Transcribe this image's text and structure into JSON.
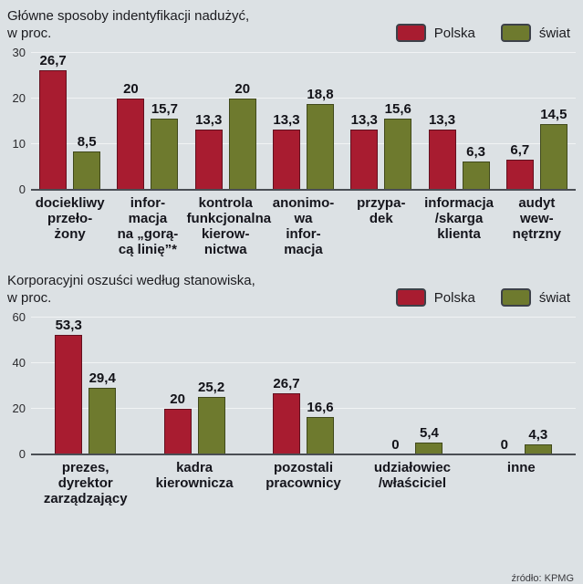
{
  "legend": {
    "polska": "Polska",
    "swiat": "świat"
  },
  "colors": {
    "polska": "#a81c30",
    "swiat": "#6e7a2e",
    "background": "#dce1e4",
    "axis": "#4a4e54",
    "gridline": "#f1f3f4"
  },
  "source": "źródło: KPMG",
  "chart_data": [
    {
      "type": "bar",
      "title": "Główne sposoby indentyfikacji nadużyć,\nw proc.",
      "categories": [
        "dociekliwy\nprzeło-\nżony",
        "infor-\nmacja\nna „gorą-\ncą linię”*",
        "kontrola\nfunkcjonalna\nkierow-\nnictwa",
        "anonimo-\nwa\ninfor-\nmacja",
        "przypa-\ndek",
        "informacja\n/skarga\nklienta",
        "audyt\nwew-\nnętrzny"
      ],
      "series": [
        {
          "name": "Polska",
          "values": [
            26.7,
            20,
            13.3,
            13.3,
            13.3,
            13.3,
            6.7
          ]
        },
        {
          "name": "świat",
          "values": [
            8.5,
            15.7,
            20,
            18.8,
            15.6,
            6.3,
            14.5
          ]
        }
      ],
      "ylim": [
        0,
        30
      ],
      "yticks": [
        0,
        10,
        20,
        30
      ],
      "legend_position": "top-right",
      "grid": true
    },
    {
      "type": "bar",
      "title": "Korporacyjni oszuści według stanowiska,\nw proc.",
      "categories": [
        "prezes,\ndyrektor\nzarządzający",
        "kadra\nkierownicza",
        "pozostali\npracownicy",
        "udziałowiec\n/właściciel",
        "inne"
      ],
      "series": [
        {
          "name": "Polska",
          "values": [
            53.3,
            20,
            26.7,
            0,
            0
          ]
        },
        {
          "name": "świat",
          "values": [
            29.4,
            25.2,
            16.6,
            5.4,
            4.3
          ]
        }
      ],
      "ylim": [
        0,
        60
      ],
      "yticks": [
        0,
        20,
        40,
        60
      ],
      "legend_position": "top-right",
      "grid": true
    }
  ]
}
